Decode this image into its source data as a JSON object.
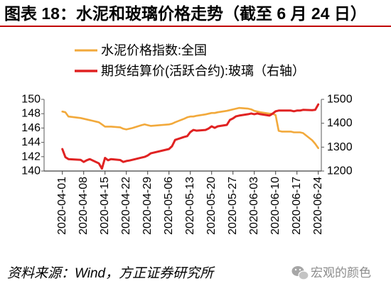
{
  "colors": {
    "accent": "#c00000"
  },
  "source": "资料来源：Wind，方正证券研究所",
  "watermark": {
    "text": "宏观的颜色",
    "icon": "wechat-icon"
  },
  "chart_data": {
    "type": "line",
    "title": "图表 18：水泥和玻璃价格走势（截至 6 月 24 日）",
    "xlim": [
      "2020-03-26",
      "2020-06-25"
    ],
    "x_ticks": [
      "2020-04-01",
      "2020-04-08",
      "2020-04-15",
      "2020-04-22",
      "2020-04-29",
      "2020-05-06",
      "2020-05-13",
      "2020-05-20",
      "2020-05-27",
      "2020-06-03",
      "2020-06-10",
      "2020-06-17",
      "2020-06-24"
    ],
    "y_left": {
      "ticks": [
        140,
        142,
        144,
        146,
        148,
        150
      ],
      "lim": [
        140,
        150
      ]
    },
    "y_right": {
      "ticks": [
        1200,
        1300,
        1400,
        1500
      ],
      "lim": [
        1200,
        1500
      ]
    },
    "grid": false,
    "legend": {
      "position": "top-left"
    },
    "x": [
      "2020-04-01",
      "2020-04-02",
      "2020-04-03",
      "2020-04-07",
      "2020-04-08",
      "2020-04-09",
      "2020-04-10",
      "2020-04-13",
      "2020-04-14",
      "2020-04-15",
      "2020-04-16",
      "2020-04-17",
      "2020-04-20",
      "2020-04-21",
      "2020-04-22",
      "2020-04-23",
      "2020-04-24",
      "2020-04-27",
      "2020-04-28",
      "2020-04-29",
      "2020-04-30",
      "2020-05-06",
      "2020-05-07",
      "2020-05-08",
      "2020-05-11",
      "2020-05-12",
      "2020-05-13",
      "2020-05-14",
      "2020-05-15",
      "2020-05-18",
      "2020-05-19",
      "2020-05-20",
      "2020-05-21",
      "2020-05-22",
      "2020-05-25",
      "2020-05-26",
      "2020-05-27",
      "2020-05-28",
      "2020-05-29",
      "2020-06-01",
      "2020-06-02",
      "2020-06-03",
      "2020-06-04",
      "2020-06-05",
      "2020-06-08",
      "2020-06-09",
      "2020-06-10",
      "2020-06-11",
      "2020-06-12",
      "2020-06-15",
      "2020-06-16",
      "2020-06-17",
      "2020-06-18",
      "2020-06-19",
      "2020-06-22",
      "2020-06-23",
      "2020-06-24"
    ],
    "series": [
      {
        "name": "水泥价格指数:全国",
        "axis": "left",
        "color": "#f2a93b",
        "values": [
          148.3,
          148.2,
          147.6,
          147.4,
          147.3,
          147.2,
          147.1,
          146.8,
          146.5,
          146.2,
          146.2,
          146.2,
          146.1,
          145.9,
          145.8,
          145.9,
          146.0,
          146.4,
          146.5,
          146.4,
          146.3,
          146.5,
          146.6,
          146.8,
          147.3,
          147.5,
          147.6,
          147.6,
          147.7,
          147.9,
          148.0,
          148.1,
          148.1,
          148.2,
          148.4,
          148.5,
          148.6,
          148.7,
          148.8,
          148.7,
          148.6,
          148.4,
          148.3,
          148.2,
          148.0,
          148.0,
          147.8,
          145.6,
          145.5,
          145.5,
          145.4,
          145.4,
          145.4,
          145.3,
          144.3,
          143.8,
          143.2
        ]
      },
      {
        "name": "期货结算价(活跃合约):玻璃（右轴）",
        "axis": "right",
        "color": "#e02222",
        "values": [
          1292,
          1258,
          1250,
          1247,
          1238,
          1245,
          1250,
          1232,
          1210,
          1255,
          1245,
          1250,
          1246,
          1238,
          1242,
          1244,
          1247,
          1256,
          1259,
          1265,
          1274,
          1292,
          1304,
          1330,
          1343,
          1346,
          1363,
          1372,
          1369,
          1372,
          1378,
          1387,
          1381,
          1387,
          1393,
          1414,
          1420,
          1429,
          1432,
          1438,
          1441,
          1438,
          1441,
          1438,
          1432,
          1440,
          1450,
          1453,
          1453,
          1453,
          1450,
          1453,
          1453,
          1456,
          1455,
          1456,
          1479
        ]
      }
    ]
  }
}
